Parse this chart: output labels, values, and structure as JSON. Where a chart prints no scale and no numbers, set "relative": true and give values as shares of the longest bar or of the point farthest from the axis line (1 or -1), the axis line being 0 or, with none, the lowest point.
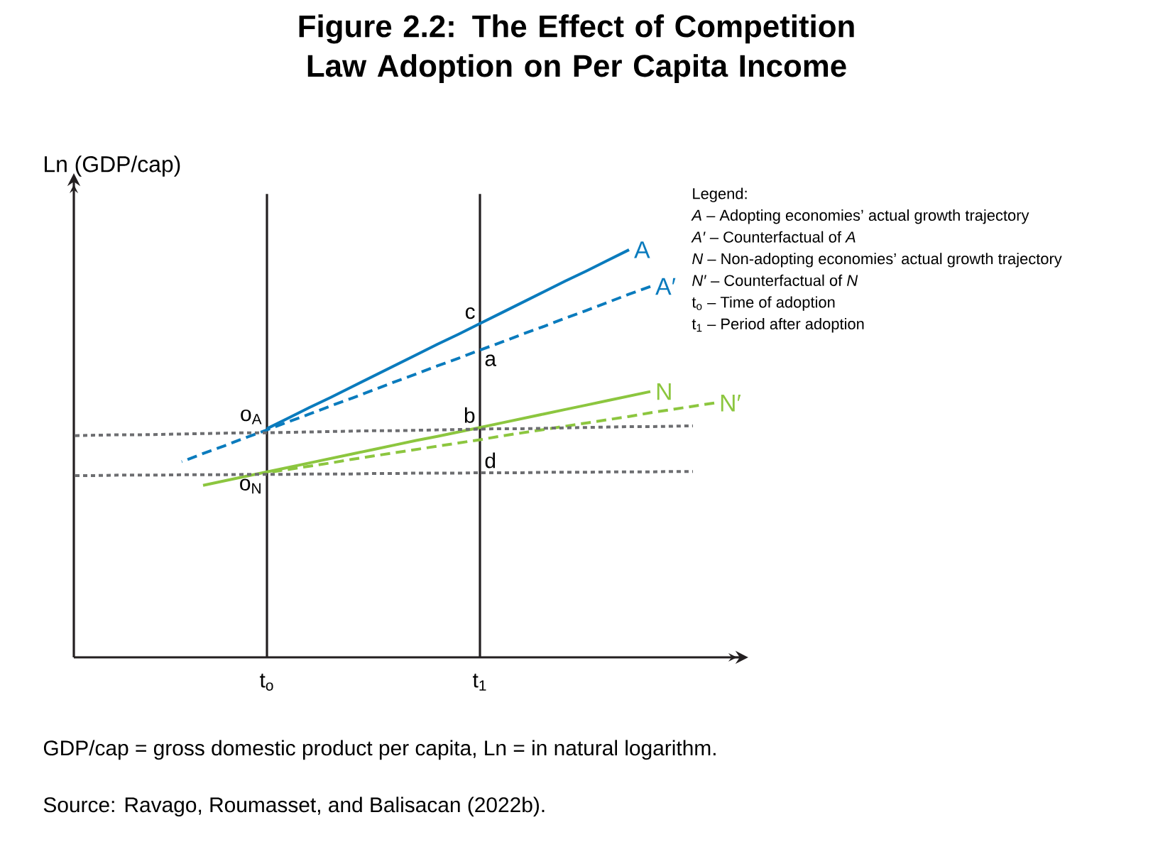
{
  "chart_data": {
    "type": "line",
    "relative": true,
    "title": "Figure 2.2: The Effect of Competition\nLaw Adoption on Per Capita Income",
    "ylabel": "Ln (GDP/cap)",
    "categories": [
      null,
      null,
      null,
      null,
      null,
      null,
      null,
      null,
      null,
      "t$_{o}$",
      null,
      null,
      null,
      null,
      null,
      null,
      null,
      null,
      null,
      "t$_{1}$",
      null,
      null,
      null,
      null,
      null,
      null,
      null,
      null,
      null,
      null,
      null
    ],
    "ref_lines": [
      {
        "axis": "x",
        "value": "t$_{o}$",
        "color": "#231f20"
      },
      {
        "axis": "x",
        "value": "t$_{1}$",
        "color": "#231f20"
      }
    ],
    "series": [
      {
        "name": "A",
        "color": "#0a7bbd",
        "line_style": "solid",
        "values": [
          null,
          null,
          null,
          null,
          null,
          null,
          null,
          null,
          null,
          0.561,
          0.587,
          0.613,
          0.638,
          0.664,
          0.69,
          0.716,
          0.742,
          0.768,
          0.793,
          0.819,
          0.845,
          0.871,
          0.897,
          0.923,
          0.948,
          0.974,
          1.0,
          null,
          null,
          null,
          null
        ]
      },
      {
        "name": "A′",
        "color": "#0a7bbd",
        "line_style": "dashed",
        "values": [
          null,
          null,
          null,
          null,
          null,
          0.48,
          0.5,
          0.519,
          0.539,
          0.558,
          0.578,
          0.597,
          0.617,
          0.636,
          0.656,
          0.676,
          0.695,
          0.715,
          0.734,
          0.754,
          0.773,
          0.793,
          0.812,
          0.832,
          0.851,
          0.871,
          0.891,
          0.91,
          null,
          null,
          null
        ]
      },
      {
        "name": "N",
        "color": "#8cc63f",
        "line_style": "solid",
        "values": [
          null,
          null,
          null,
          null,
          null,
          null,
          0.422,
          0.433,
          0.444,
          0.455,
          0.466,
          0.477,
          0.488,
          0.499,
          0.51,
          0.521,
          0.532,
          0.542,
          0.553,
          0.564,
          0.575,
          0.586,
          0.597,
          0.608,
          0.619,
          0.63,
          0.641,
          0.652,
          null,
          null,
          null
        ]
      },
      {
        "name": "N′",
        "color": "#8cc63f",
        "line_style": "dashed",
        "values": [
          null,
          null,
          null,
          null,
          null,
          null,
          null,
          null,
          null,
          0.453,
          0.461,
          0.469,
          0.477,
          0.486,
          0.494,
          0.502,
          0.51,
          0.518,
          0.526,
          0.534,
          0.543,
          0.551,
          0.559,
          0.567,
          0.575,
          0.583,
          0.591,
          0.6,
          0.608,
          0.616,
          0.624
        ]
      },
      {
        "color": "#6d6e71",
        "line_style": "dotted",
        "values": [
          0.544,
          0.545,
          0.546,
          0.546,
          0.547,
          0.548,
          0.549,
          0.55,
          0.551,
          0.551,
          0.552,
          0.553,
          0.554,
          0.555,
          0.556,
          0.556,
          0.557,
          0.558,
          0.559,
          0.56,
          0.561,
          0.561,
          0.562,
          0.563,
          0.564,
          0.565,
          0.566,
          0.566,
          0.567,
          0.568,
          null
        ]
      },
      {
        "color": "#6d6e71",
        "line_style": "dotted",
        "values": [
          0.446,
          0.446,
          0.447,
          0.447,
          0.447,
          0.448,
          0.448,
          0.448,
          0.449,
          0.449,
          0.449,
          0.45,
          0.45,
          0.45,
          0.451,
          0.451,
          0.452,
          0.452,
          0.452,
          0.453,
          0.453,
          0.453,
          0.454,
          0.454,
          0.454,
          0.455,
          0.455,
          0.455,
          0.456,
          0.456,
          null
        ]
      }
    ],
    "annotations": [
      "Legend:",
      "*A* – Adopting economies’ actual growth trajectory",
      "*A′* – Counterfactual of *A*",
      "*N* – Non-adopting economies’ actual growth trajectory",
      "*N′* – Counterfactual of *N*",
      "t$_{o}$ – Time of adoption",
      "t$_{1}$ – Period after adoption",
      "GDP/cap = gross domestic product per capita, Ln = in natural logarithm.",
      "Source: Ravago, Roumasset, and Balisacan (2022b).",
      {
        "text": "c",
        "x": "t$_{1}$",
        "y": 0.819
      },
      {
        "text": "a",
        "x": "t$_{1}$",
        "y": 0.754
      },
      {
        "text": "b",
        "x": "t$_{1}$",
        "y": 0.564
      },
      {
        "text": "d",
        "x": "t$_{1}$",
        "y": 0.453
      },
      {
        "text": "o$_{A}$",
        "x": "t$_{o}$",
        "y": 0.561
      },
      {
        "text": "o$_{N}$",
        "x": "t$_{o}$",
        "y": 0.449
      }
    ]
  }
}
